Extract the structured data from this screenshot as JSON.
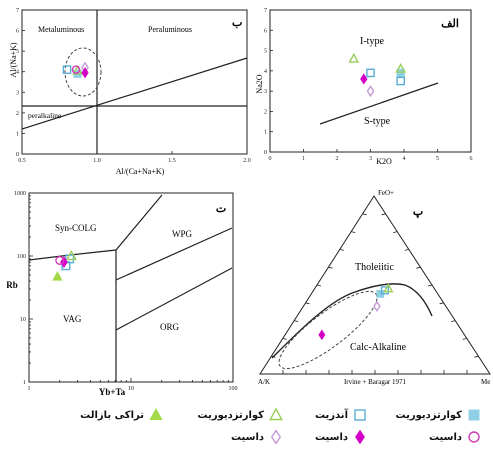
{
  "chart_data": [
    {
      "id": "b",
      "type": "scatter",
      "panel_label": "ب",
      "xlabel": "Al/(Ca+Na+K)",
      "ylabel": "Al/(Na+K)",
      "xlim": [
        0.5,
        2.0
      ],
      "ylim": [
        0,
        7
      ],
      "xticks": [
        "0.5",
        "1.0",
        "1.5",
        "2.0"
      ],
      "yticks": [
        "0",
        "1",
        "2",
        "3",
        "4",
        "5",
        "6",
        "7"
      ],
      "regions": [
        "Metaluminous",
        "Peraluminous",
        "peralkaline"
      ],
      "series": [
        {
          "symbol": "filled-square",
          "x": [
            0.87
          ],
          "y": [
            3.9
          ]
        },
        {
          "symbol": "open-square",
          "x": [
            0.8
          ],
          "y": [
            4.1
          ]
        },
        {
          "symbol": "open-triangle",
          "x": [
            0.87
          ],
          "y": [
            4.05
          ]
        },
        {
          "symbol": "open-diamond",
          "x": [
            0.92
          ],
          "y": [
            4.2
          ]
        },
        {
          "symbol": "open-circle",
          "x": [
            0.86
          ],
          "y": [
            4.1
          ]
        },
        {
          "symbol": "filled-diamond",
          "x": [
            0.92
          ],
          "y": [
            3.95
          ]
        }
      ]
    },
    {
      "id": "alef",
      "type": "scatter",
      "panel_label": "الف",
      "xlabel": "K2O",
      "ylabel": "Na2O",
      "xlim": [
        0,
        6
      ],
      "ylim": [
        0,
        7
      ],
      "xticks": [
        "0",
        "1",
        "2",
        "3",
        "4",
        "5",
        "6"
      ],
      "yticks": [
        "0",
        "1",
        "2",
        "3",
        "4",
        "5",
        "6",
        "7"
      ],
      "regions": [
        "I-type",
        "S-type"
      ],
      "series": [
        {
          "symbol": "filled-square",
          "x": [
            3.9
          ],
          "y": [
            3.9
          ]
        },
        {
          "symbol": "open-square",
          "x": [
            3.0
          ],
          "y": [
            3.9
          ]
        },
        {
          "symbol": "open-square",
          "x": [
            3.9
          ],
          "y": [
            3.5
          ]
        },
        {
          "symbol": "open-triangle",
          "x": [
            2.5
          ],
          "y": [
            4.6
          ]
        },
        {
          "symbol": "open-triangle",
          "x": [
            3.9
          ],
          "y": [
            4.1
          ]
        },
        {
          "symbol": "filled-diamond",
          "x": [
            2.8
          ],
          "y": [
            3.6
          ]
        },
        {
          "symbol": "open-diamond",
          "x": [
            3.0
          ],
          "y": [
            3.0
          ]
        }
      ]
    },
    {
      "id": "t",
      "type": "scatter",
      "panel_label": "ت",
      "xlabel": "Yb+Ta",
      "ylabel": "Rb",
      "xscale": "log",
      "yscale": "log",
      "xlim": [
        1,
        100
      ],
      "ylim": [
        1,
        1000
      ],
      "xticks": [
        "1",
        "10",
        "100"
      ],
      "yticks": [
        "1",
        "10",
        "100",
        "1000"
      ],
      "regions": [
        "Syn-COLG",
        "WPG",
        "VAG",
        "ORG"
      ],
      "series": [
        {
          "symbol": "filled-triangle",
          "x": [
            1.9
          ],
          "y": [
            47
          ]
        },
        {
          "symbol": "open-square",
          "x": [
            2.5
          ],
          "y": [
            90
          ]
        },
        {
          "symbol": "open-square",
          "x": [
            2.3
          ],
          "y": [
            70
          ]
        },
        {
          "symbol": "open-triangle",
          "x": [
            2.6
          ],
          "y": [
            100
          ]
        },
        {
          "symbol": "filled-diamond",
          "x": [
            2.2
          ],
          "y": [
            80
          ]
        },
        {
          "symbol": "open-circle",
          "x": [
            2.0
          ],
          "y": [
            85
          ]
        }
      ]
    },
    {
      "id": "p",
      "type": "ternary",
      "panel_label": "پ",
      "apex_top": "FeO+",
      "apex_left": "A/K",
      "apex_right": "Me",
      "caption": "Irvine + Baragar 1971",
      "regions": [
        "Tholeiitic",
        "Calc-Alkaline"
      ],
      "series": [
        {
          "symbol": "filled-square",
          "a": [
            0.25
          ],
          "f": [
            0.45
          ],
          "m": [
            0.3
          ]
        },
        {
          "symbol": "open-square",
          "a": [
            0.22
          ],
          "f": [
            0.47
          ],
          "m": [
            0.31
          ]
        },
        {
          "symbol": "open-triangle",
          "a": [
            0.2
          ],
          "f": [
            0.48
          ],
          "m": [
            0.32
          ]
        },
        {
          "symbol": "open-diamond",
          "a": [
            0.3
          ],
          "f": [
            0.38
          ],
          "m": [
            0.32
          ]
        },
        {
          "symbol": "filled-diamond",
          "a": [
            0.62
          ],
          "f": [
            0.22
          ],
          "m": [
            0.16
          ]
        }
      ]
    }
  ],
  "legend": [
    {
      "symbol": "filled-square",
      "label": "کوارتزدیوریت",
      "color": "#7ecbe0"
    },
    {
      "symbol": "open-square",
      "label": "آندزیت",
      "color": "#5bb4d6"
    },
    {
      "symbol": "open-triangle",
      "label": "کوارتزدیوریت",
      "color": "#8cc63f"
    },
    {
      "symbol": "filled-triangle",
      "label": "تراکی بازالت",
      "color": "#9acd32"
    },
    {
      "symbol": "open-circle",
      "label": "داسیت",
      "color": "#d63bb8"
    },
    {
      "symbol": "filled-diamond",
      "label": "داسیت",
      "color": "#d600c8"
    },
    {
      "symbol": "open-diamond",
      "label": "داسیت",
      "color": "#c9a0e0"
    }
  ],
  "colors": {
    "filled-square": "#8fd0e4",
    "open-square": "#5aaed6",
    "open-triangle": "#9acd5a",
    "filled-triangle": "#a3d94a",
    "open-circle": "#d63bb8",
    "filled-diamond": "#d400c6",
    "open-diamond": "#c49ad8"
  }
}
